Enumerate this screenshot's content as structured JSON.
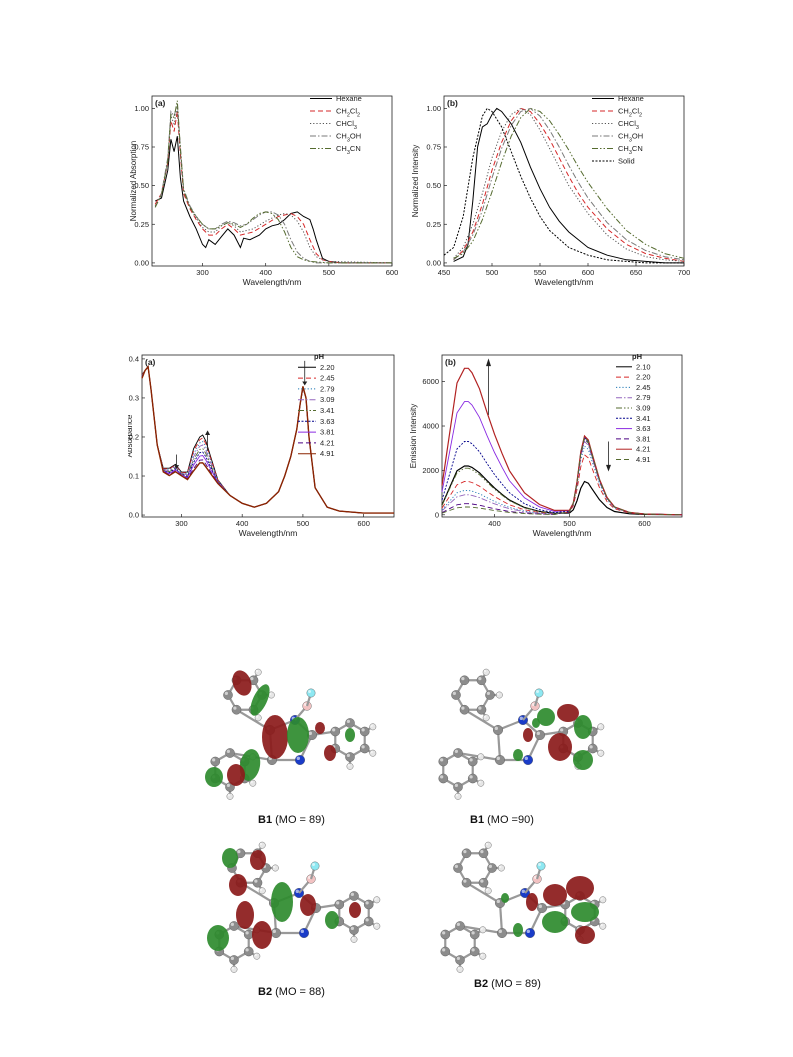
{
  "chart_data": [
    {
      "type": "line",
      "panel_label": "(a)",
      "xlabel": "Wavelength/nm",
      "ylabel": "Normalized Absorption",
      "xlim": [
        220,
        600
      ],
      "ylim": [
        -0.02,
        1.08
      ],
      "xticks": [
        300,
        400,
        500,
        600
      ],
      "yticks": [
        0.0,
        0.25,
        0.5,
        0.75,
        1.0
      ],
      "ytick_labels": [
        "0.00",
        "0.25",
        "0.50",
        "0.75",
        "1.00"
      ],
      "legend_position": "top-right",
      "series": [
        {
          "name": "Hexane",
          "color": "#000000",
          "dash": "solid",
          "x": [
            225,
            235,
            245,
            250,
            255,
            260,
            265,
            270,
            280,
            290,
            300,
            305,
            310,
            320,
            330,
            340,
            350,
            360,
            365,
            375,
            390,
            400,
            410,
            420,
            430,
            440,
            450,
            460,
            470,
            475,
            480,
            490,
            500,
            520,
            600
          ],
          "y": [
            0.4,
            0.42,
            0.6,
            0.8,
            0.72,
            0.82,
            0.55,
            0.4,
            0.3,
            0.22,
            0.12,
            0.1,
            0.15,
            0.12,
            0.17,
            0.22,
            0.18,
            0.1,
            0.16,
            0.15,
            0.18,
            0.22,
            0.24,
            0.25,
            0.28,
            0.32,
            0.33,
            0.3,
            0.28,
            0.22,
            0.15,
            0.03,
            0.01,
            0.0,
            0.0
          ]
        },
        {
          "name": "CH2Cl2",
          "color": "#d62728",
          "dash": "dash",
          "x": [
            225,
            235,
            245,
            250,
            255,
            260,
            265,
            270,
            280,
            290,
            300,
            310,
            320,
            330,
            340,
            350,
            360,
            380,
            400,
            420,
            440,
            450,
            460,
            470,
            480,
            490,
            500,
            520,
            600
          ],
          "y": [
            0.38,
            0.45,
            0.65,
            0.92,
            0.85,
            0.98,
            0.7,
            0.45,
            0.35,
            0.28,
            0.22,
            0.18,
            0.18,
            0.22,
            0.25,
            0.22,
            0.18,
            0.2,
            0.25,
            0.3,
            0.32,
            0.3,
            0.25,
            0.15,
            0.06,
            0.02,
            0.01,
            0.0,
            0.0
          ]
        },
        {
          "name": "CHCl3",
          "color": "#555555",
          "dash": "dot",
          "x": [
            225,
            235,
            245,
            250,
            255,
            260,
            265,
            270,
            280,
            290,
            300,
            310,
            320,
            330,
            340,
            350,
            360,
            380,
            400,
            420,
            430,
            440,
            450,
            460,
            470,
            480,
            490,
            500,
            600
          ],
          "y": [
            0.37,
            0.44,
            0.66,
            0.95,
            0.9,
            1.0,
            0.72,
            0.47,
            0.36,
            0.29,
            0.23,
            0.2,
            0.2,
            0.24,
            0.26,
            0.24,
            0.2,
            0.22,
            0.27,
            0.31,
            0.32,
            0.31,
            0.27,
            0.2,
            0.1,
            0.04,
            0.02,
            0.01,
            0.0
          ]
        },
        {
          "name": "CH3OH",
          "color": "#7a7a7a",
          "dash": "dashdot",
          "x": [
            225,
            235,
            245,
            250,
            255,
            260,
            265,
            270,
            280,
            290,
            300,
            310,
            320,
            330,
            340,
            350,
            360,
            370,
            380,
            390,
            400,
            410,
            420,
            430,
            440,
            450,
            460,
            470,
            480,
            500,
            600
          ],
          "y": [
            0.36,
            0.45,
            0.68,
            0.98,
            0.95,
            1.03,
            0.75,
            0.48,
            0.37,
            0.3,
            0.25,
            0.22,
            0.22,
            0.25,
            0.27,
            0.26,
            0.24,
            0.25,
            0.28,
            0.31,
            0.33,
            0.33,
            0.31,
            0.25,
            0.15,
            0.07,
            0.03,
            0.01,
            0.0,
            0.0,
            0.0
          ]
        },
        {
          "name": "CH3CN",
          "color": "#556b2f",
          "dash": "dashdotdot",
          "x": [
            225,
            235,
            245,
            250,
            255,
            260,
            265,
            270,
            280,
            290,
            300,
            310,
            320,
            330,
            340,
            350,
            360,
            370,
            380,
            390,
            400,
            410,
            420,
            430,
            440,
            450,
            460,
            470,
            500,
            600
          ],
          "y": [
            0.36,
            0.44,
            0.66,
            0.96,
            0.94,
            1.05,
            0.74,
            0.47,
            0.36,
            0.3,
            0.25,
            0.22,
            0.22,
            0.24,
            0.26,
            0.25,
            0.23,
            0.25,
            0.29,
            0.32,
            0.33,
            0.32,
            0.28,
            0.2,
            0.1,
            0.04,
            0.02,
            0.01,
            0.0,
            0.0
          ]
        }
      ]
    },
    {
      "type": "line",
      "panel_label": "(b)",
      "xlabel": "Wavelength/nm",
      "ylabel": "Normalized Intensity",
      "xlim": [
        450,
        700
      ],
      "ylim": [
        -0.02,
        1.08
      ],
      "xticks": [
        450,
        500,
        550,
        600,
        650,
        700
      ],
      "yticks": [
        0.0,
        0.25,
        0.5,
        0.75,
        1.0
      ],
      "ytick_labels": [
        "0.00",
        "0.25",
        "0.50",
        "0.75",
        "1.00"
      ],
      "legend_position": "top-right",
      "series": [
        {
          "name": "Hexane",
          "color": "#000000",
          "dash": "solid",
          "x": [
            460,
            470,
            475,
            480,
            485,
            490,
            495,
            500,
            505,
            510,
            520,
            530,
            540,
            550,
            560,
            570,
            580,
            600,
            620,
            640,
            660,
            680,
            700
          ],
          "y": [
            0.01,
            0.04,
            0.12,
            0.4,
            0.75,
            0.88,
            0.9,
            0.96,
            1.0,
            0.98,
            0.9,
            0.78,
            0.62,
            0.48,
            0.36,
            0.27,
            0.2,
            0.1,
            0.05,
            0.02,
            0.01,
            0.0,
            0.0
          ]
        },
        {
          "name": "CH2Cl2",
          "color": "#d62728",
          "dash": "dash",
          "x": [
            460,
            470,
            480,
            490,
            500,
            510,
            520,
            530,
            540,
            550,
            560,
            570,
            580,
            590,
            600,
            620,
            640,
            660,
            680,
            700
          ],
          "y": [
            0.02,
            0.08,
            0.2,
            0.38,
            0.6,
            0.78,
            0.92,
            1.0,
            0.98,
            0.9,
            0.8,
            0.68,
            0.56,
            0.45,
            0.36,
            0.22,
            0.12,
            0.06,
            0.03,
            0.01
          ]
        },
        {
          "name": "CHCl3",
          "color": "#555555",
          "dash": "dot",
          "x": [
            460,
            470,
            480,
            490,
            500,
            510,
            520,
            530,
            540,
            550,
            560,
            570,
            580,
            600,
            620,
            640,
            660,
            680,
            700
          ],
          "y": [
            0.03,
            0.1,
            0.25,
            0.45,
            0.68,
            0.85,
            0.96,
            1.0,
            0.96,
            0.86,
            0.74,
            0.62,
            0.5,
            0.32,
            0.18,
            0.09,
            0.04,
            0.02,
            0.01
          ]
        },
        {
          "name": "CH3OH",
          "color": "#7a7a7a",
          "dash": "dashdot",
          "x": [
            460,
            470,
            480,
            490,
            500,
            510,
            520,
            530,
            540,
            550,
            560,
            570,
            580,
            590,
            600,
            620,
            640,
            660,
            680,
            700
          ],
          "y": [
            0.02,
            0.07,
            0.18,
            0.34,
            0.55,
            0.74,
            0.89,
            0.98,
            1.0,
            0.95,
            0.86,
            0.75,
            0.63,
            0.52,
            0.42,
            0.26,
            0.15,
            0.08,
            0.04,
            0.02
          ]
        },
        {
          "name": "CH3CN",
          "color": "#556b2f",
          "dash": "dashdotdot",
          "x": [
            460,
            470,
            480,
            490,
            500,
            510,
            520,
            530,
            540,
            550,
            560,
            570,
            580,
            590,
            600,
            620,
            640,
            660,
            680,
            700
          ],
          "y": [
            0.03,
            0.06,
            0.14,
            0.28,
            0.46,
            0.65,
            0.82,
            0.94,
            1.0,
            0.98,
            0.92,
            0.83,
            0.73,
            0.62,
            0.52,
            0.35,
            0.21,
            0.12,
            0.06,
            0.03
          ]
        },
        {
          "name": "Solid",
          "color": "#000000",
          "dash": "shortdot",
          "x": [
            450,
            460,
            470,
            480,
            490,
            495,
            500,
            510,
            520,
            530,
            540,
            550,
            560,
            580,
            600,
            620,
            640,
            660,
            680,
            700
          ],
          "y": [
            0.05,
            0.1,
            0.3,
            0.68,
            0.95,
            1.0,
            0.98,
            0.88,
            0.72,
            0.56,
            0.42,
            0.3,
            0.21,
            0.1,
            0.05,
            0.02,
            0.01,
            0.0,
            0.0,
            0.0
          ]
        }
      ]
    },
    {
      "type": "line",
      "panel_label": "(a)",
      "xlabel": "Wavelength/nm",
      "ylabel": "Absorbance",
      "xlim": [
        235,
        650
      ],
      "ylim": [
        -0.005,
        0.41
      ],
      "xticks": [
        300,
        400,
        500,
        600
      ],
      "yticks": [
        0.0,
        0.1,
        0.2,
        0.3,
        0.4
      ],
      "ytick_labels": [
        "0.0",
        "0.1",
        "0.2",
        "0.3",
        "0.4"
      ],
      "legend_title": "pH",
      "legend_position": "top-right",
      "x": [
        235,
        240,
        245,
        250,
        260,
        270,
        280,
        290,
        300,
        310,
        320,
        330,
        335,
        340,
        350,
        360,
        380,
        400,
        420,
        440,
        460,
        470,
        480,
        490,
        495,
        500,
        505,
        510,
        520,
        540,
        560,
        600,
        650
      ],
      "base": [
        0.35,
        0.37,
        0.38,
        0.32,
        0.18,
        0.11,
        0.1,
        0.11,
        0.1,
        0.09,
        0.11,
        0.13,
        0.13,
        0.12,
        0.1,
        0.08,
        0.05,
        0.03,
        0.02,
        0.03,
        0.06,
        0.1,
        0.15,
        0.22,
        0.28,
        0.33,
        0.3,
        0.2,
        0.07,
        0.02,
        0.01,
        0.005,
        0.005
      ],
      "peak": [
        0.36,
        0.37,
        0.38,
        0.32,
        0.18,
        0.12,
        0.12,
        0.13,
        0.11,
        0.11,
        0.17,
        0.2,
        0.205,
        0.19,
        0.14,
        0.09,
        0.05,
        0.03,
        0.02,
        0.03,
        0.06,
        0.1,
        0.15,
        0.22,
        0.28,
        0.325,
        0.3,
        0.2,
        0.07,
        0.02,
        0.01,
        0.005,
        0.005
      ],
      "series": [
        {
          "name": "2.20",
          "color": "#000000",
          "dash": "solid",
          "mix": 1.0
        },
        {
          "name": "2.45",
          "color": "#d62728",
          "dash": "dash",
          "mix": 0.9
        },
        {
          "name": "2.79",
          "color": "#1f77b4",
          "dash": "dot",
          "mix": 0.78
        },
        {
          "name": "3.09",
          "color": "#9467bd",
          "dash": "dashdot",
          "mix": 0.66
        },
        {
          "name": "3.41",
          "color": "#556b2f",
          "dash": "dashdotdot",
          "mix": 0.54
        },
        {
          "name": "3.63",
          "color": "#00008b",
          "dash": "shortdot",
          "mix": 0.42
        },
        {
          "name": "3.81",
          "color": "#8a2be2",
          "dash": "solid",
          "mix": 0.3
        },
        {
          "name": "4.21",
          "color": "#4b0082",
          "dash": "dash",
          "mix": 0.15
        },
        {
          "name": "4.91",
          "color": "#8b2500",
          "dash": "solid",
          "mix": 0.05
        }
      ]
    },
    {
      "type": "line",
      "panel_label": "(b)",
      "xlabel": "Wavelength/nm",
      "ylabel": "Emission Intensity",
      "xlim": [
        330,
        650
      ],
      "ylim": [
        -100,
        7200
      ],
      "xticks": [
        400,
        500,
        600
      ],
      "yticks": [
        0,
        2000,
        4000,
        6000
      ],
      "ytick_labels": [
        "0",
        "2000",
        "4000",
        "6000"
      ],
      "legend_title": "pH",
      "legend_position": "top-right",
      "x": [
        330,
        340,
        350,
        360,
        365,
        370,
        380,
        390,
        400,
        410,
        420,
        440,
        460,
        480,
        500,
        505,
        510,
        515,
        520,
        525,
        530,
        540,
        550,
        560,
        580,
        600,
        650
      ],
      "band1": [
        0.2,
        0.55,
        0.9,
        1.0,
        1.0,
        0.97,
        0.86,
        0.7,
        0.55,
        0.42,
        0.3,
        0.15,
        0.07,
        0.03,
        0.01,
        0.0,
        0.0,
        0.0,
        0.0,
        0.0,
        0.0,
        0.0,
        0.0,
        0.0,
        0.0,
        0.0,
        0.0
      ],
      "band2": [
        0.0,
        0.0,
        0.0,
        0.0,
        0.0,
        0.0,
        0.0,
        0.0,
        0.0,
        0.0,
        0.0,
        0.0,
        0.0,
        0.0,
        0.04,
        0.15,
        0.42,
        0.8,
        1.0,
        0.95,
        0.78,
        0.45,
        0.22,
        0.1,
        0.03,
        0.01,
        0.0
      ],
      "series": [
        {
          "name": "2.10",
          "color": "#000000",
          "dash": "solid",
          "a": 2200,
          "b": 1500
        },
        {
          "name": "2.20",
          "color": "#d62728",
          "dash": "dash",
          "a": 1500,
          "b": 2700
        },
        {
          "name": "2.45",
          "color": "#1f77b4",
          "dash": "dot",
          "a": 1100,
          "b": 3100
        },
        {
          "name": "2.79",
          "color": "#9467bd",
          "dash": "dashdot",
          "a": 900,
          "b": 3300
        },
        {
          "name": "3.09",
          "color": "#556b2f",
          "dash": "dashdotdot",
          "a": 2100,
          "b": 3400
        },
        {
          "name": "3.41",
          "color": "#00008b",
          "dash": "shortdot",
          "a": 3300,
          "b": 3450
        },
        {
          "name": "3.63",
          "color": "#8a2be2",
          "dash": "solid",
          "a": 5100,
          "b": 3500
        },
        {
          "name": "3.81",
          "color": "#4b0082",
          "dash": "dash",
          "a": 500,
          "b": 3500
        },
        {
          "name": "4.21",
          "color": "#b22222",
          "dash": "solid",
          "a": 6600,
          "b": 3550
        },
        {
          "name": "4.91",
          "color": "#556b2f",
          "dash": "dash",
          "a": 350,
          "b": 3500
        }
      ]
    }
  ],
  "orbitals": [
    {
      "molecule": "B1",
      "mo_text": " (MO = 89)"
    },
    {
      "molecule": "B1",
      "mo_text": " (MO =90)"
    },
    {
      "molecule": "B2",
      "mo_text": " (MO = 88)"
    },
    {
      "molecule": "B2",
      "mo_text": " (MO = 89)"
    }
  ],
  "colors": {
    "lobe_red": "#8b1a1a",
    "lobe_green": "#2e8b2e",
    "carbon": "#8c8c8c",
    "hydrogen": "#e6e6e6",
    "nitrogen": "#1a3cc8",
    "boron": "#f2c2c2",
    "fluorine": "#8ee8f2"
  }
}
